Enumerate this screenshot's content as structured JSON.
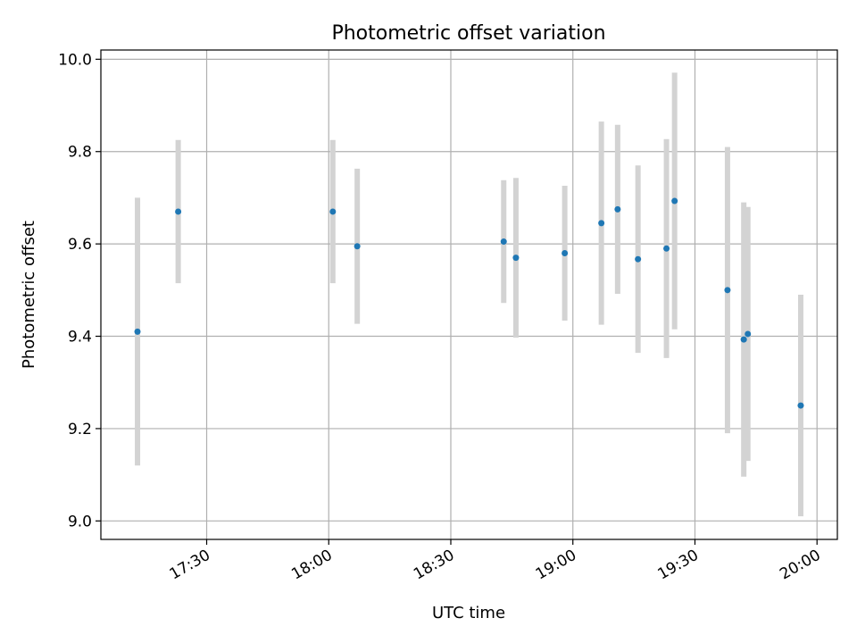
{
  "chart_data": {
    "type": "scatter",
    "title": "Photometric offset variation",
    "xlabel": "UTC time",
    "ylabel": "Photometric offset",
    "xlim": [
      "17:04",
      "20:05"
    ],
    "ylim": [
      8.96,
      10.02
    ],
    "xticks": [
      "17:30",
      "18:00",
      "18:30",
      "19:00",
      "19:30",
      "20:00"
    ],
    "yticks": [
      "9.0",
      "9.2",
      "9.4",
      "9.6",
      "9.8",
      "10.0"
    ],
    "grid": true,
    "colors": {
      "point": "#1f77b4",
      "errorbar": "#d3d3d3",
      "grid": "#b0b0b0"
    },
    "points": [
      {
        "x": "17:13",
        "y": 9.41,
        "yerr": 0.29
      },
      {
        "x": "17:23",
        "y": 9.67,
        "yerr": 0.155
      },
      {
        "x": "18:01",
        "y": 9.67,
        "yerr": 0.155
      },
      {
        "x": "18:07",
        "y": 9.595,
        "yerr": 0.168
      },
      {
        "x": "18:43",
        "y": 9.605,
        "yerr": 0.133
      },
      {
        "x": "18:46",
        "y": 9.57,
        "yerr": 0.173
      },
      {
        "x": "18:58",
        "y": 9.58,
        "yerr": 0.146
      },
      {
        "x": "19:07",
        "y": 9.645,
        "yerr": 0.22
      },
      {
        "x": "19:11",
        "y": 9.675,
        "yerr": 0.183
      },
      {
        "x": "19:16",
        "y": 9.567,
        "yerr": 0.203
      },
      {
        "x": "19:23",
        "y": 9.59,
        "yerr": 0.237
      },
      {
        "x": "19:25",
        "y": 9.693,
        "yerr": 0.278
      },
      {
        "x": "19:38",
        "y": 9.5,
        "yerr": 0.31
      },
      {
        "x": "19:42",
        "y": 9.393,
        "yerr": 0.297
      },
      {
        "x": "19:43",
        "y": 9.405,
        "yerr": 0.275
      },
      {
        "x": "19:56",
        "y": 9.25,
        "yerr": 0.24
      }
    ]
  }
}
